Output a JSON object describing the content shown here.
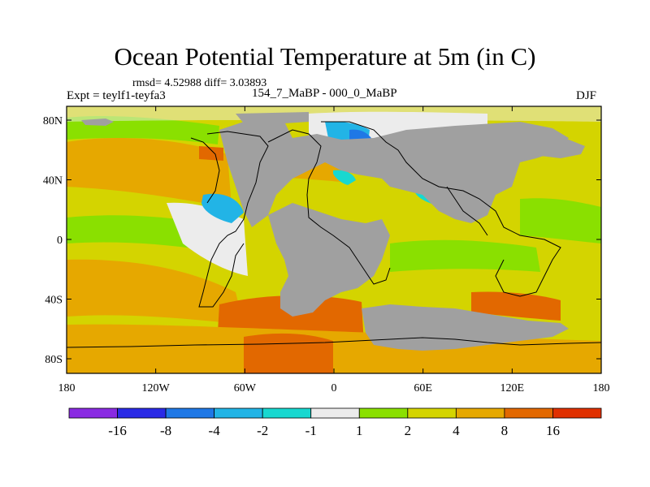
{
  "title": "Ocean Potential Temperature at 5m (in C)",
  "stats": "rmsd= 4.52988 diff= 3.03893",
  "expt": "Expt = teylf1-teyfa3",
  "period": "154_7_MaBP - 000_0_MaBP",
  "season": "DJF",
  "axes": {
    "x_ticks": [
      "180",
      "120W",
      "60W",
      "0",
      "60E",
      "120E",
      "180"
    ],
    "y_ticks": [
      "80N",
      "40N",
      "0",
      "40S",
      "80S"
    ]
  },
  "colorbar": {
    "labels": [
      "-16",
      "-8",
      "-4",
      "-2",
      "-1",
      "1",
      "2",
      "4",
      "8",
      "16"
    ],
    "colors": [
      "#8a2be2",
      "#2a2ae6",
      "#1f78e6",
      "#22b4e6",
      "#18d8d0",
      "#ececec",
      "#8ae000",
      "#d4d400",
      "#e6a800",
      "#e26800",
      "#e03000"
    ]
  },
  "colors": {
    "land": "#a0a0a0",
    "frame": "#000000"
  }
}
